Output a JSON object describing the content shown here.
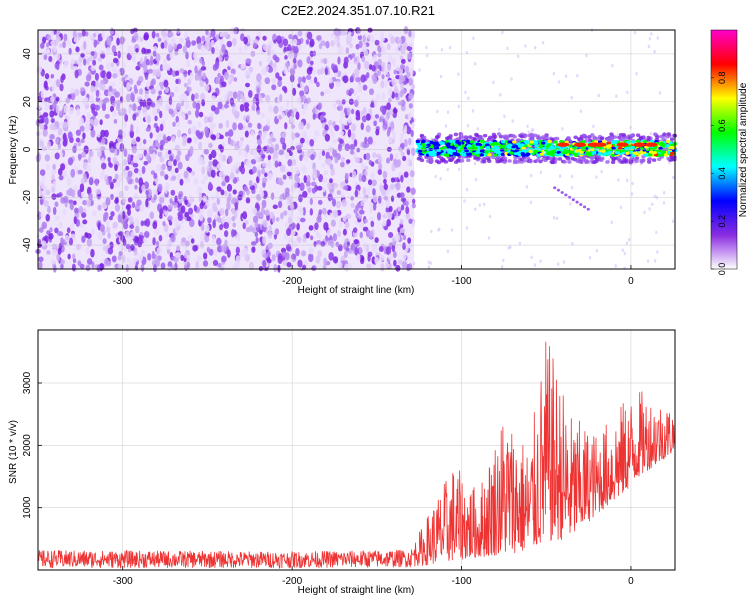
{
  "title": "C2E2.2024.351.07.10.R21",
  "chart_data": [
    {
      "type": "heatmap",
      "xlabel": "Height of straight line (km)",
      "ylabel": "Frequency (Hz)",
      "xlim": [
        -350,
        26
      ],
      "ylim": [
        -50,
        50
      ],
      "xticks": [
        -300,
        -200,
        -100,
        0
      ],
      "yticks": [
        -40,
        -20,
        0,
        20,
        40
      ],
      "colorbar": {
        "label": "Normalized spectral amplitude",
        "range": [
          0.0,
          1.0
        ],
        "ticks": [
          "0.0",
          "0.2",
          "0.4",
          "0.6",
          "0.8"
        ],
        "colors": [
          "#ffffff",
          "#8a2be2",
          "#0000ff",
          "#00ffff",
          "#00ff00",
          "#ffff00",
          "#ff0000",
          "#ff00cc"
        ]
      },
      "regions": [
        {
          "description_x_range": [
            -350,
            -128
          ],
          "freq_range": [
            -50,
            50
          ],
          "amplitude": 0.05
        },
        {
          "description_x_range": [
            -128,
            26
          ],
          "freq_center": 0.5,
          "amplitude_peak": 0.95
        }
      ],
      "grid": true
    },
    {
      "type": "line",
      "xlabel": "Height of straight line (km)",
      "ylabel": "SNR (10 * v/v)",
      "xlim": [
        -350,
        26
      ],
      "ylim": [
        0,
        3850
      ],
      "xticks": [
        -300,
        -200,
        -100,
        0
      ],
      "yticks": [
        1000,
        2000,
        3000
      ],
      "color": "#ee3333",
      "grid": true,
      "envelope": [
        {
          "x": -350,
          "low": 30,
          "high": 320
        },
        {
          "x": -200,
          "low": 30,
          "high": 300
        },
        {
          "x": -130,
          "low": 40,
          "high": 330
        },
        {
          "x": -120,
          "low": 80,
          "high": 900
        },
        {
          "x": -105,
          "low": 150,
          "high": 1700
        },
        {
          "x": -90,
          "low": 200,
          "high": 1300
        },
        {
          "x": -75,
          "low": 250,
          "high": 2600
        },
        {
          "x": -60,
          "low": 300,
          "high": 2000
        },
        {
          "x": -50,
          "low": 450,
          "high": 3800
        },
        {
          "x": -35,
          "low": 500,
          "high": 2500
        },
        {
          "x": -20,
          "low": 900,
          "high": 2200
        },
        {
          "x": -5,
          "low": 1200,
          "high": 2700
        },
        {
          "x": 5,
          "low": 1500,
          "high": 2900
        },
        {
          "x": 26,
          "low": 1900,
          "high": 2600
        }
      ]
    }
  ]
}
